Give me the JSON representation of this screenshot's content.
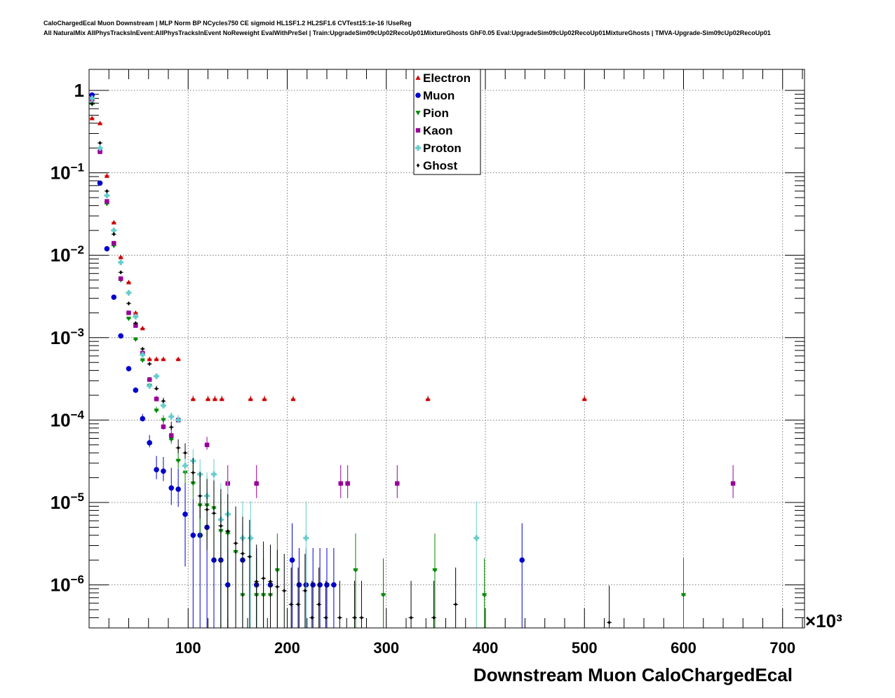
{
  "header": {
    "line1": "CaloChargedEcal Muon Downstream | MLP Norm BP NCycles750 CE sigmoid HL1SF1.2 HL2SF1.6 CVTest15:1e-16 !UseReg",
    "line2": "All NaturalMix AllPhysTracksInEvent:AllPhysTracksInEvent NoReweight EvalWithPreSel | Train:UpgradeSim09cUp02RecoUp01MixtureGhosts GhF0.05 Eval:UpgradeSim09cUp02RecoUp01MixtureGhosts | TMVA-Upgrade-Sim09cUp02RecoUp01"
  },
  "chart_data": {
    "type": "scatter",
    "title": "",
    "xlabel": "Downstream Muon CaloChargedEcal",
    "x_multiplier": "×10³",
    "ylabel": "",
    "xlim": [
      0,
      720
    ],
    "ylim": [
      3e-07,
      1.7
    ],
    "yscale": "log",
    "grid": true,
    "legend_position": "top-center",
    "x_ticks": [
      100,
      200,
      300,
      400,
      500,
      600,
      700
    ],
    "y_ticks": [
      {
        "base": "1",
        "exp": ""
      },
      {
        "base": "10",
        "exp": "−1"
      },
      {
        "base": "10",
        "exp": "−2"
      },
      {
        "base": "10",
        "exp": "−3"
      },
      {
        "base": "10",
        "exp": "−4"
      },
      {
        "base": "10",
        "exp": "−5"
      },
      {
        "base": "10",
        "exp": "−6"
      }
    ],
    "series": [
      {
        "name": "Electron",
        "color": "#cc0000",
        "marker": "triangle-up",
        "points": [
          [
            3,
            0.46
          ],
          [
            11,
            0.4
          ],
          [
            18,
            0.092
          ],
          [
            25,
            0.025
          ],
          [
            32,
            0.0095
          ],
          [
            40,
            0.0047
          ],
          [
            47,
            0.002
          ],
          [
            54,
            0.0013
          ],
          [
            61,
            0.00055
          ],
          [
            68,
            0.00055
          ],
          [
            75,
            0.00055
          ],
          [
            90,
            0.00055
          ],
          [
            105,
            0.00018
          ],
          [
            120,
            0.00018
          ],
          [
            127,
            0.00018
          ],
          [
            134,
            0.00018
          ],
          [
            163,
            0.00018
          ],
          [
            177,
            0.00018
          ],
          [
            206,
            0.00018
          ],
          [
            342,
            0.00018
          ],
          [
            500,
            0.00018
          ]
        ]
      },
      {
        "name": "Muon",
        "color": "#0000cc",
        "marker": "circle",
        "points": [
          [
            3,
            0.88
          ],
          [
            11,
            0.075
          ],
          [
            18,
            0.012
          ],
          [
            25,
            0.0031
          ],
          [
            32,
            0.00105
          ],
          [
            40,
            0.00042
          ],
          [
            47,
            0.00023
          ],
          [
            54,
            0.000104
          ],
          [
            61,
            5.3e-05
          ],
          [
            68,
            2.5e-05
          ],
          [
            75,
            2.4e-05
          ],
          [
            83,
            1.5e-05
          ],
          [
            90,
            1.45e-05
          ],
          [
            97,
            7.2e-06
          ],
          [
            105,
            4e-06
          ],
          [
            112,
            4e-06
          ],
          [
            119,
            5e-06
          ],
          [
            126,
            2e-06
          ],
          [
            133,
            2e-06
          ],
          [
            140,
            1e-06
          ],
          [
            155,
            2e-06
          ],
          [
            169,
            1e-06
          ],
          [
            183,
            1e-06
          ],
          [
            205,
            2e-06
          ],
          [
            212,
            1e-06
          ],
          [
            219,
            1e-06
          ],
          [
            226,
            1e-06
          ],
          [
            233,
            1e-06
          ],
          [
            240,
            1e-06
          ],
          [
            247,
            1e-06
          ],
          [
            437,
            2e-06
          ]
        ]
      },
      {
        "name": "Pion",
        "color": "#008800",
        "marker": "triangle-down",
        "points": [
          [
            3,
            0.68
          ],
          [
            11,
            0.18
          ],
          [
            18,
            0.042
          ],
          [
            25,
            0.013
          ],
          [
            32,
            0.005
          ],
          [
            40,
            0.0017
          ],
          [
            47,
            0.00095
          ],
          [
            54,
            0.00053
          ],
          [
            61,
            0.00026
          ],
          [
            68,
            0.00013
          ],
          [
            75,
            0.0001
          ],
          [
            83,
            5.8e-05
          ],
          [
            90,
            3.2e-05
          ],
          [
            97,
            2.3e-05
          ],
          [
            105,
            1.7e-05
          ],
          [
            112,
            9.2e-06
          ],
          [
            119,
            9.2e-06
          ],
          [
            126,
            8.5e-06
          ],
          [
            133,
            4.5e-06
          ],
          [
            140,
            4.2e-06
          ],
          [
            148,
            2.5e-06
          ],
          [
            155,
            7.5e-07
          ],
          [
            169,
            7.5e-07
          ],
          [
            176,
            7.5e-07
          ],
          [
            183,
            7.5e-07
          ],
          [
            190,
            1.5e-06
          ],
          [
            269,
            1.5e-06
          ],
          [
            297,
            7.5e-07
          ],
          [
            349,
            1.5e-06
          ],
          [
            399,
            7.5e-07
          ],
          [
            600,
            7.5e-07
          ]
        ]
      },
      {
        "name": "Kaon",
        "color": "#990099",
        "marker": "square",
        "points": [
          [
            3,
            0.78
          ],
          [
            11,
            0.18
          ],
          [
            18,
            0.045
          ],
          [
            25,
            0.014
          ],
          [
            32,
            0.0052
          ],
          [
            40,
            0.002
          ],
          [
            47,
            0.0014
          ],
          [
            54,
            0.00065
          ],
          [
            61,
            0.00031
          ],
          [
            68,
            0.00018
          ],
          [
            75,
            8.3e-05
          ],
          [
            83,
            6.5e-05
          ],
          [
            90,
            0.0001
          ],
          [
            119,
            5e-05
          ],
          [
            140,
            1.7e-05
          ],
          [
            169,
            1.7e-05
          ],
          [
            254,
            1.7e-05
          ],
          [
            261,
            1.7e-05
          ],
          [
            311,
            1.7e-05
          ],
          [
            650,
            1.7e-05
          ]
        ]
      },
      {
        "name": "Proton",
        "color": "#66cccc",
        "marker": "cross",
        "points": [
          [
            3,
            0.8
          ],
          [
            11,
            0.2
          ],
          [
            18,
            0.053
          ],
          [
            25,
            0.02
          ],
          [
            32,
            0.0082
          ],
          [
            40,
            0.0035
          ],
          [
            47,
            0.0018
          ],
          [
            54,
            0.00062
          ],
          [
            61,
            0.00026
          ],
          [
            68,
            0.00034
          ],
          [
            75,
            0.00015
          ],
          [
            83,
            0.00011
          ],
          [
            90,
            0.0001
          ],
          [
            97,
            2.8e-05
          ],
          [
            105,
            3.2e-05
          ],
          [
            112,
            2.2e-05
          ],
          [
            119,
            1.2e-05
          ],
          [
            126,
            2.2e-05
          ],
          [
            133,
            6.2e-06
          ],
          [
            140,
            7.2e-06
          ],
          [
            155,
            3.7e-06
          ],
          [
            163,
            3.7e-06
          ],
          [
            219,
            3.7e-06
          ],
          [
            391,
            3.7e-06
          ]
        ]
      },
      {
        "name": "Ghost",
        "color": "#000000",
        "marker": "diamond",
        "points": [
          [
            3,
            0.69
          ],
          [
            11,
            0.23
          ],
          [
            18,
            0.06
          ],
          [
            25,
            0.018
          ],
          [
            32,
            0.0062
          ],
          [
            40,
            0.0026
          ],
          [
            47,
            0.0015
          ],
          [
            54,
            0.00073
          ],
          [
            61,
            0.00048
          ],
          [
            68,
            0.00024
          ],
          [
            75,
            0.00017
          ],
          [
            83,
            8.2e-05
          ],
          [
            90,
            4.6e-05
          ],
          [
            97,
            4e-05
          ],
          [
            105,
            2.3e-05
          ],
          [
            112,
            1.2e-05
          ],
          [
            119,
            8.2e-06
          ],
          [
            126,
            7.4e-06
          ],
          [
            133,
            5.2e-06
          ],
          [
            140,
            4.5e-06
          ],
          [
            148,
            3.2e-06
          ],
          [
            155,
            2.4e-06
          ],
          [
            162,
            2.2e-06
          ],
          [
            169,
            1.1e-06
          ],
          [
            176,
            1.2e-06
          ],
          [
            183,
            1.1e-06
          ],
          [
            190,
            9.5e-07
          ],
          [
            197,
            8.5e-07
          ],
          [
            204,
            5.8e-07
          ],
          [
            211,
            5.8e-07
          ],
          [
            218,
            8.5e-07
          ],
          [
            225,
            4e-07
          ],
          [
            232,
            5.8e-07
          ],
          [
            239,
            4e-07
          ],
          [
            253,
            4e-07
          ],
          [
            268,
            4e-07
          ],
          [
            275,
            4e-07
          ],
          [
            325,
            4e-07
          ],
          [
            348,
            4e-07
          ],
          [
            370,
            5.8e-07
          ],
          [
            525,
            3.5e-07
          ]
        ]
      }
    ]
  }
}
